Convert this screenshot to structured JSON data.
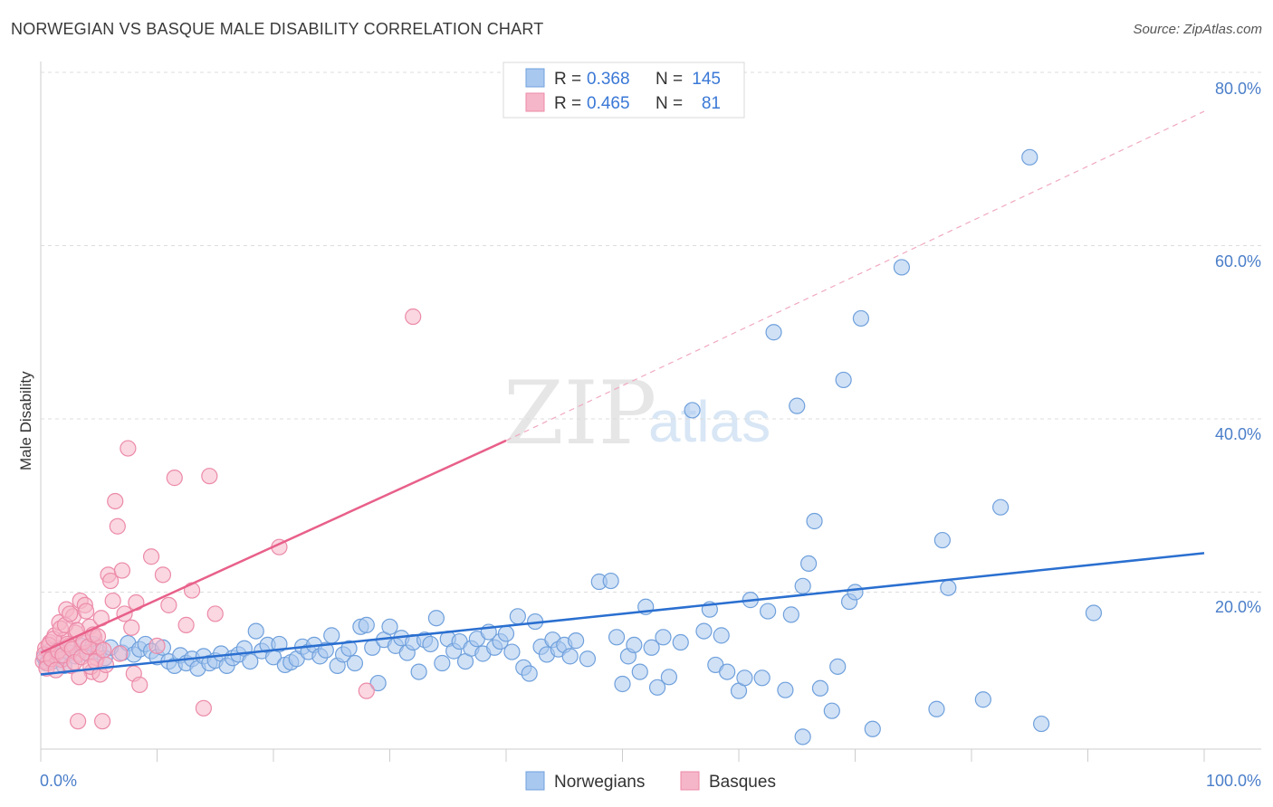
{
  "title": "NORWEGIAN VS BASQUE MALE DISABILITY CORRELATION CHART",
  "source": "Source: ZipAtlas.com",
  "watermark": {
    "left": "ZIP",
    "right": "atlas"
  },
  "legend": {
    "rows": [
      {
        "r_label": "R =",
        "r_value": "0.368",
        "n_label": "N =",
        "n_value": "145"
      },
      {
        "r_label": "R =",
        "r_value": "0.465",
        "n_label": "N =",
        "n_value": "81"
      }
    ]
  },
  "bottom_legend": [
    "Norwegians",
    "Basques"
  ],
  "colors": {
    "norwegian_fill": "#a9c8ef",
    "norwegian_stroke": "#6fa0dc",
    "norwegian_line": "#2a6fd0",
    "basque_fill": "#f6b6c9",
    "basque_stroke": "#ec8aa8",
    "basque_line": "#e8608a",
    "grid": "#dcdcdc",
    "tick_text": "#4a7ec9"
  },
  "chart_data": {
    "type": "scatter",
    "title": "NORWEGIAN VS BASQUE MALE DISABILITY CORRELATION CHART",
    "xlabel": "",
    "ylabel": "Male Disability",
    "xlim": [
      0,
      100
    ],
    "ylim": [
      0,
      80
    ],
    "x_ticks": [
      "0.0%",
      "100.0%"
    ],
    "y_ticks": [
      "20.0%",
      "40.0%",
      "60.0%",
      "80.0%"
    ],
    "grid": "horizontal dashed",
    "legend_position": "top-center",
    "series": [
      {
        "name": "Norwegians",
        "R": 0.368,
        "N": 145,
        "trend": {
          "x0": 0,
          "y0": 10.5,
          "x1": 100,
          "y1": 24.5
        },
        "points": [
          [
            0.3,
            12.5
          ],
          [
            0.5,
            11.8
          ],
          [
            0.8,
            13.2
          ],
          [
            1.0,
            12.0
          ],
          [
            1.2,
            12.8
          ],
          [
            1.5,
            13.5
          ],
          [
            1.8,
            12.2
          ],
          [
            2.0,
            11.5
          ],
          [
            2.5,
            13.0
          ],
          [
            3.0,
            12.6
          ],
          [
            3.5,
            13.8
          ],
          [
            4.0,
            12.9
          ],
          [
            4.5,
            14.0
          ],
          [
            5.0,
            13.1
          ],
          [
            5.5,
            12.4
          ],
          [
            6.0,
            13.6
          ],
          [
            7.0,
            13.0
          ],
          [
            7.5,
            14.1
          ],
          [
            8.0,
            12.8
          ],
          [
            8.5,
            13.4
          ],
          [
            9.0,
            14.0
          ],
          [
            9.5,
            13.2
          ],
          [
            10.0,
            12.5
          ],
          [
            10.5,
            13.6
          ],
          [
            11.0,
            12.0
          ],
          [
            11.5,
            11.5
          ],
          [
            12.0,
            12.7
          ],
          [
            12.5,
            11.8
          ],
          [
            13.0,
            12.3
          ],
          [
            13.5,
            11.2
          ],
          [
            14.0,
            12.6
          ],
          [
            14.5,
            11.8
          ],
          [
            15.0,
            12.1
          ],
          [
            15.5,
            12.9
          ],
          [
            16.0,
            11.5
          ],
          [
            16.5,
            12.4
          ],
          [
            17.0,
            12.8
          ],
          [
            17.5,
            13.5
          ],
          [
            18.0,
            12.0
          ],
          [
            18.5,
            15.5
          ],
          [
            19.0,
            13.2
          ],
          [
            19.5,
            13.9
          ],
          [
            20.0,
            12.5
          ],
          [
            20.5,
            14.0
          ],
          [
            21.0,
            11.6
          ],
          [
            21.5,
            11.9
          ],
          [
            22.0,
            12.3
          ],
          [
            22.5,
            13.7
          ],
          [
            23.0,
            13.1
          ],
          [
            23.5,
            13.9
          ],
          [
            24.0,
            12.6
          ],
          [
            24.5,
            13.3
          ],
          [
            25.0,
            15.0
          ],
          [
            25.5,
            11.5
          ],
          [
            26.0,
            12.8
          ],
          [
            26.5,
            13.5
          ],
          [
            27.0,
            11.8
          ],
          [
            27.5,
            16.0
          ],
          [
            28.0,
            16.2
          ],
          [
            28.5,
            13.6
          ],
          [
            29.0,
            9.5
          ],
          [
            29.5,
            14.5
          ],
          [
            30.0,
            16.0
          ],
          [
            30.5,
            13.8
          ],
          [
            31.0,
            14.7
          ],
          [
            31.5,
            13.0
          ],
          [
            32.0,
            14.2
          ],
          [
            32.5,
            10.8
          ],
          [
            33.0,
            14.5
          ],
          [
            33.5,
            14.0
          ],
          [
            34.0,
            17.0
          ],
          [
            34.5,
            11.8
          ],
          [
            35.0,
            14.6
          ],
          [
            35.5,
            13.2
          ],
          [
            36.0,
            14.3
          ],
          [
            36.5,
            12.0
          ],
          [
            37.0,
            13.5
          ],
          [
            37.5,
            14.6
          ],
          [
            38.0,
            12.9
          ],
          [
            38.5,
            15.4
          ],
          [
            39.0,
            13.6
          ],
          [
            39.5,
            14.3
          ],
          [
            40.0,
            15.2
          ],
          [
            40.5,
            13.1
          ],
          [
            41.0,
            17.2
          ],
          [
            41.5,
            11.3
          ],
          [
            42.0,
            10.6
          ],
          [
            42.5,
            16.6
          ],
          [
            43.0,
            13.7
          ],
          [
            43.5,
            12.8
          ],
          [
            44.0,
            14.5
          ],
          [
            44.5,
            13.4
          ],
          [
            45.0,
            13.9
          ],
          [
            45.5,
            12.6
          ],
          [
            46.0,
            14.4
          ],
          [
            47.0,
            12.3
          ],
          [
            48.0,
            21.2
          ],
          [
            49.0,
            21.3
          ],
          [
            49.5,
            14.8
          ],
          [
            50.0,
            9.4
          ],
          [
            50.5,
            12.6
          ],
          [
            51.0,
            13.9
          ],
          [
            51.5,
            10.8
          ],
          [
            52.0,
            18.3
          ],
          [
            52.5,
            13.6
          ],
          [
            53.0,
            9.0
          ],
          [
            53.5,
            14.8
          ],
          [
            54.0,
            10.2
          ],
          [
            55.0,
            14.2
          ],
          [
            56.0,
            41.0
          ],
          [
            57.0,
            15.5
          ],
          [
            57.5,
            18.0
          ],
          [
            58.0,
            11.6
          ],
          [
            58.5,
            15.0
          ],
          [
            59.0,
            10.8
          ],
          [
            60.0,
            8.6
          ],
          [
            60.5,
            10.1
          ],
          [
            61.0,
            19.1
          ],
          [
            62.0,
            10.1
          ],
          [
            62.5,
            17.8
          ],
          [
            63.0,
            50.0
          ],
          [
            64.0,
            8.7
          ],
          [
            64.5,
            17.4
          ],
          [
            65.0,
            41.5
          ],
          [
            65.5,
            20.7
          ],
          [
            66.0,
            23.3
          ],
          [
            66.5,
            28.2
          ],
          [
            67.0,
            8.9
          ],
          [
            68.0,
            6.3
          ],
          [
            68.5,
            11.4
          ],
          [
            69.0,
            44.5
          ],
          [
            69.5,
            18.9
          ],
          [
            70.0,
            20.0
          ],
          [
            70.5,
            51.6
          ],
          [
            71.5,
            4.2
          ],
          [
            74.0,
            57.5
          ],
          [
            77.0,
            6.5
          ],
          [
            77.5,
            26.0
          ],
          [
            78.0,
            20.5
          ],
          [
            81.0,
            7.6
          ],
          [
            82.5,
            29.8
          ],
          [
            85.0,
            70.2
          ],
          [
            86.0,
            4.8
          ],
          [
            90.5,
            17.6
          ],
          [
            65.5,
            3.3
          ]
        ]
      },
      {
        "name": "Basques",
        "R": 0.465,
        "N": 81,
        "trend": {
          "x0": 0,
          "y0": 13.0,
          "x1": 40,
          "y1": 37.5,
          "dashed_to_x": 100,
          "dashed_to_y": 75.5
        },
        "points": [
          [
            0.2,
            12.0
          ],
          [
            0.4,
            13.5
          ],
          [
            0.6,
            11.8
          ],
          [
            0.8,
            14.2
          ],
          [
            1.0,
            12.6
          ],
          [
            1.2,
            15.0
          ],
          [
            1.4,
            13.0
          ],
          [
            1.6,
            16.5
          ],
          [
            1.8,
            12.2
          ],
          [
            2.0,
            14.5
          ],
          [
            2.2,
            18.0
          ],
          [
            2.4,
            13.8
          ],
          [
            2.6,
            11.5
          ],
          [
            2.8,
            17.2
          ],
          [
            3.0,
            15.3
          ],
          [
            3.2,
            12.9
          ],
          [
            3.4,
            19.0
          ],
          [
            3.6,
            14.1
          ],
          [
            3.8,
            18.5
          ],
          [
            4.0,
            13.0
          ],
          [
            4.2,
            16.0
          ],
          [
            4.4,
            10.8
          ],
          [
            4.6,
            14.8
          ],
          [
            4.8,
            12.4
          ],
          [
            5.0,
            13.6
          ],
          [
            0.3,
            12.8
          ],
          [
            0.5,
            11.2
          ],
          [
            0.7,
            13.9
          ],
          [
            0.9,
            12.3
          ],
          [
            1.1,
            14.6
          ],
          [
            1.3,
            11.0
          ],
          [
            1.5,
            13.2
          ],
          [
            1.7,
            15.8
          ],
          [
            1.9,
            12.7
          ],
          [
            2.1,
            16.2
          ],
          [
            2.3,
            14.0
          ],
          [
            2.5,
            17.5
          ],
          [
            2.7,
            13.4
          ],
          [
            2.9,
            11.9
          ],
          [
            3.1,
            15.6
          ],
          [
            3.3,
            10.2
          ],
          [
            3.5,
            12.5
          ],
          [
            3.7,
            14.3
          ],
          [
            3.9,
            17.8
          ],
          [
            4.1,
            13.7
          ],
          [
            4.3,
            11.4
          ],
          [
            4.5,
            15.1
          ],
          [
            4.7,
            12.0
          ],
          [
            4.9,
            14.9
          ],
          [
            5.1,
            10.5
          ],
          [
            5.2,
            17.0
          ],
          [
            5.4,
            13.3
          ],
          [
            5.6,
            11.6
          ],
          [
            5.8,
            22.0
          ],
          [
            6.0,
            21.3
          ],
          [
            6.2,
            19.0
          ],
          [
            6.4,
            30.5
          ],
          [
            6.6,
            27.6
          ],
          [
            6.8,
            12.9
          ],
          [
            7.0,
            22.5
          ],
          [
            7.2,
            17.5
          ],
          [
            7.5,
            36.6
          ],
          [
            7.8,
            15.9
          ],
          [
            8.0,
            10.6
          ],
          [
            8.2,
            18.8
          ],
          [
            8.5,
            9.3
          ],
          [
            9.5,
            24.1
          ],
          [
            10.0,
            13.8
          ],
          [
            10.5,
            22.0
          ],
          [
            11.0,
            18.5
          ],
          [
            11.5,
            33.2
          ],
          [
            12.5,
            16.2
          ],
          [
            13.0,
            20.2
          ],
          [
            14.0,
            6.6
          ],
          [
            14.5,
            33.4
          ],
          [
            15.0,
            17.5
          ],
          [
            20.5,
            25.2
          ],
          [
            28.0,
            8.6
          ],
          [
            32.0,
            51.8
          ],
          [
            3.2,
            5.1
          ],
          [
            5.3,
            5.1
          ]
        ]
      }
    ]
  }
}
